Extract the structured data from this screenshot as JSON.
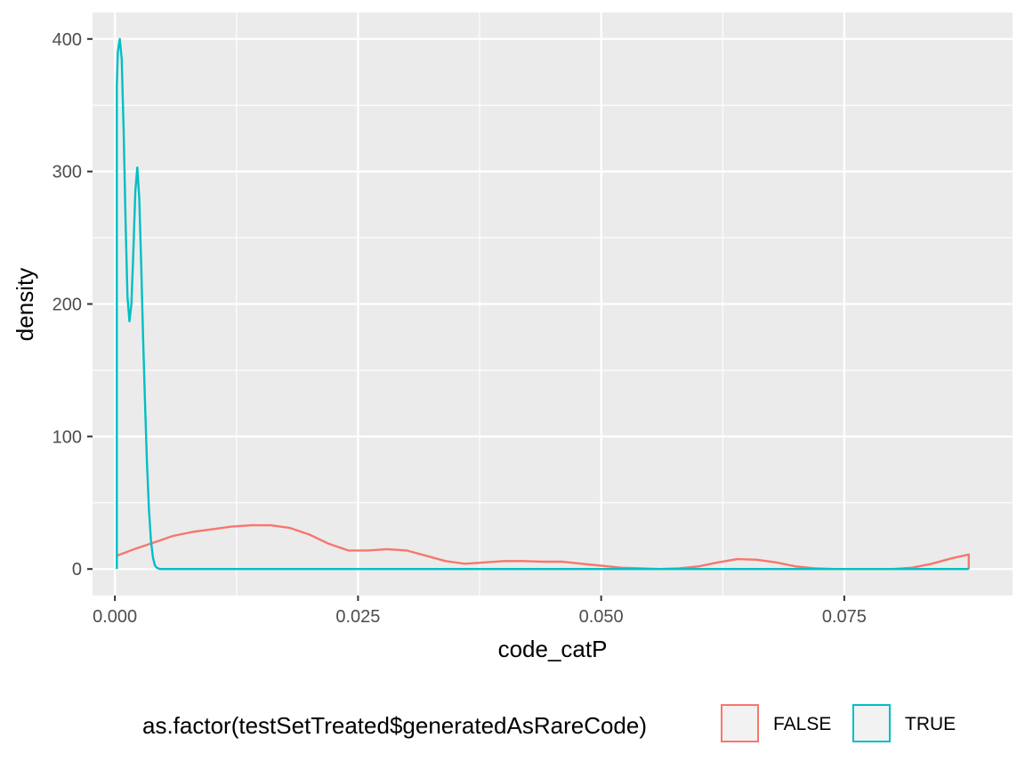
{
  "chart_data": {
    "type": "line",
    "subtype": "density",
    "title": "",
    "xlabel": "code_catP",
    "ylabel": "density",
    "xlim": [
      -0.0023,
      0.0923
    ],
    "ylim": [
      -20,
      420
    ],
    "x_ticks": [
      0.0,
      0.025,
      0.05,
      0.075
    ],
    "x_tick_labels": [
      "0.000",
      "0.025",
      "0.050",
      "0.075"
    ],
    "y_ticks": [
      0,
      100,
      200,
      300,
      400
    ],
    "y_tick_labels": [
      "0",
      "100",
      "200",
      "300",
      "400"
    ],
    "grid": true,
    "legend": {
      "position": "bottom",
      "title": "as.factor(testSetTreated$generatedAsRareCode)",
      "entries": [
        "FALSE",
        "TRUE"
      ]
    },
    "series": [
      {
        "name": "FALSE",
        "color": "#F8766D",
        "x": [
          0.0002,
          0.002,
          0.004,
          0.006,
          0.008,
          0.01,
          0.012,
          0.014,
          0.016,
          0.018,
          0.02,
          0.022,
          0.024,
          0.026,
          0.028,
          0.03,
          0.032,
          0.034,
          0.036,
          0.038,
          0.04,
          0.042,
          0.044,
          0.046,
          0.048,
          0.05,
          0.052,
          0.054,
          0.056,
          0.058,
          0.06,
          0.062,
          0.064,
          0.066,
          0.068,
          0.07,
          0.072,
          0.074,
          0.076,
          0.078,
          0.08,
          0.082,
          0.084,
          0.086,
          0.0878,
          0.0878
        ],
        "y": [
          10,
          15,
          20,
          25,
          28,
          30,
          32,
          33,
          33,
          31,
          26,
          19,
          14,
          14,
          15,
          14,
          10,
          6,
          4,
          5,
          6,
          6,
          5.5,
          5.5,
          4,
          2.5,
          1,
          0.5,
          0,
          0.5,
          2,
          5,
          7.5,
          7,
          5,
          2,
          0.5,
          0,
          0,
          0,
          0,
          1,
          4,
          8,
          11,
          0
        ]
      },
      {
        "name": "TRUE",
        "color": "#00BFC4",
        "x": [
          0.0002,
          0.0002,
          0.0003,
          0.0005,
          0.0007,
          0.0009,
          0.0011,
          0.0013,
          0.0015,
          0.0017,
          0.0019,
          0.0021,
          0.0023,
          0.0025,
          0.0027,
          0.0029,
          0.0031,
          0.0033,
          0.0035,
          0.0037,
          0.0039,
          0.0041,
          0.0043,
          0.0046,
          0.005,
          0.01,
          0.02,
          0.04,
          0.06,
          0.08,
          0.0878
        ],
        "y": [
          0,
          365,
          390,
          400,
          385,
          330,
          260,
          205,
          187,
          200,
          240,
          285,
          303,
          280,
          230,
          175,
          125,
          80,
          45,
          22,
          9,
          3,
          1,
          0,
          0,
          0,
          0,
          0,
          0,
          0,
          0
        ]
      }
    ]
  }
}
